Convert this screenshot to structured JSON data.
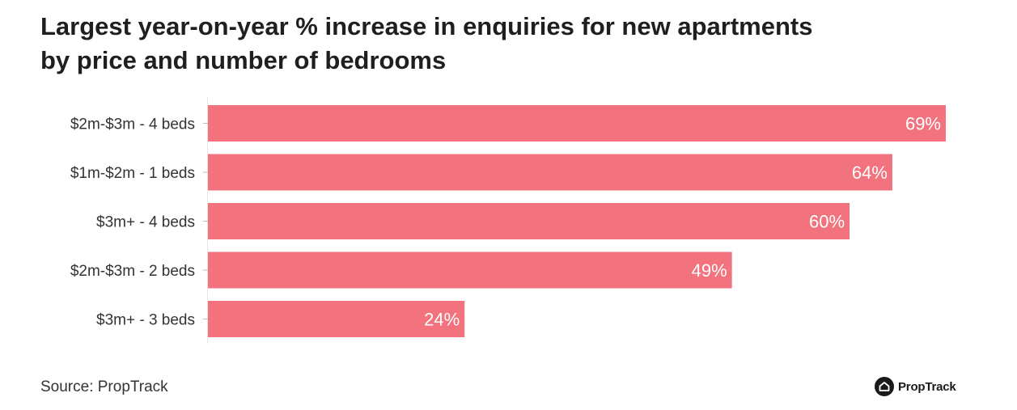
{
  "chart_data": {
    "type": "bar",
    "orientation": "horizontal",
    "title": [
      "Largest year-on-year % increase in enquiries for new apartments",
      "by price and number of bedrooms"
    ],
    "categories": [
      "$2m-$3m - 4 beds",
      "$1m-$2m - 1 beds",
      "$3m+ - 4 beds",
      "$2m-$3m - 2 beds",
      "$3m+ - 3 beds"
    ],
    "values": [
      69,
      64,
      60,
      49,
      24
    ],
    "value_labels": [
      "69%",
      "64%",
      "60%",
      "49%",
      "24%"
    ],
    "xlim": [
      0,
      69
    ],
    "xlabel": "",
    "ylabel": "",
    "grid": false,
    "bar_color": "#f2737d"
  },
  "footer": {
    "source": "Source: PropTrack",
    "brand": "PropTrack"
  }
}
